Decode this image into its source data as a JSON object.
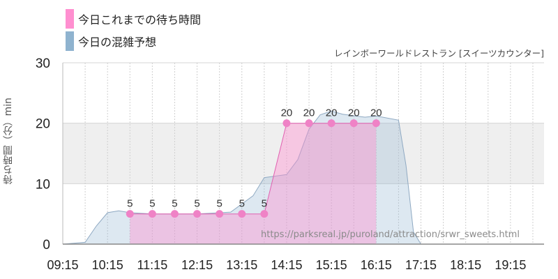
{
  "legend": {
    "today": {
      "label": "今日これまでの待ち時間",
      "color": "#ff8fd0"
    },
    "forecast": {
      "label": "今日の混雑予想",
      "color": "#8fb3cf"
    }
  },
  "subtitle": "レインボーワールドレストラン [スイーツカウンター]",
  "watermark": "https://parksreal.jp/puroland/attraction/srwr_sweets.html",
  "chart_data": {
    "type": "area",
    "ylabel": "待ち時間（分）min",
    "ylim": [
      0,
      30
    ],
    "yticks": [
      0,
      10,
      20,
      30
    ],
    "band": [
      10,
      20
    ],
    "xlim": [
      "09:15",
      "20:00"
    ],
    "xticks": [
      "09:15",
      "10:15",
      "11:15",
      "12:15",
      "13:15",
      "14:15",
      "15:15",
      "16:15",
      "17:15",
      "18:15",
      "19:15"
    ],
    "grid": true,
    "series": [
      {
        "name": "今日の混雑予想",
        "color": "#8fb3cf",
        "points": [
          [
            "09:15",
            0
          ],
          [
            "09:45",
            0.3
          ],
          [
            "10:00",
            3
          ],
          [
            "10:15",
            5.2
          ],
          [
            "10:30",
            5.5
          ],
          [
            "10:45",
            5.2
          ],
          [
            "11:15",
            5
          ],
          [
            "12:15",
            5
          ],
          [
            "13:00",
            5.3
          ],
          [
            "13:30",
            8
          ],
          [
            "13:45",
            11
          ],
          [
            "14:15",
            11.5
          ],
          [
            "14:30",
            14
          ],
          [
            "14:45",
            19
          ],
          [
            "15:00",
            21.4
          ],
          [
            "15:15",
            22
          ],
          [
            "15:30",
            21.5
          ],
          [
            "16:00",
            21
          ],
          [
            "16:15",
            21.2
          ],
          [
            "16:45",
            20.5
          ],
          [
            "16:55",
            13
          ],
          [
            "17:05",
            2
          ],
          [
            "17:15",
            0
          ],
          [
            "20:00",
            0
          ]
        ]
      },
      {
        "name": "今日これまでの待ち時間",
        "color": "#ff8fd0",
        "points": [
          [
            "10:45",
            5
          ],
          [
            "11:15",
            5
          ],
          [
            "11:45",
            5
          ],
          [
            "12:15",
            5
          ],
          [
            "12:45",
            5
          ],
          [
            "13:15",
            5
          ],
          [
            "13:45",
            5
          ],
          [
            "14:15",
            20
          ],
          [
            "14:45",
            20
          ],
          [
            "15:15",
            20
          ],
          [
            "15:45",
            20
          ],
          [
            "16:15",
            20
          ]
        ]
      }
    ]
  }
}
